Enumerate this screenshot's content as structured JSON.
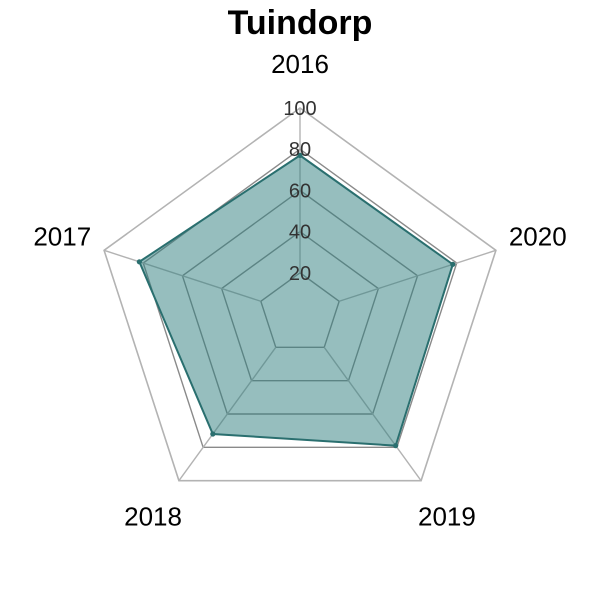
{
  "chart_data": {
    "type": "radar",
    "title": "Tuindorp",
    "axes": [
      "2016",
      "2017",
      "2018",
      "2019",
      "2020"
    ],
    "series": [
      {
        "values": [
          77,
          82,
          72,
          79,
          78
        ]
      }
    ],
    "rlim": [
      0,
      100
    ],
    "rticks": [
      20,
      40,
      60,
      80,
      100
    ],
    "grid": true,
    "legend": "none",
    "colors": {
      "fill": "#2e7d7d",
      "fill_opacity": 0.5,
      "line": "#2a6f6f",
      "grid_inner": "#8a8a8a",
      "grid_outer": "#b3b3b3",
      "tick_text": "#333333"
    }
  }
}
